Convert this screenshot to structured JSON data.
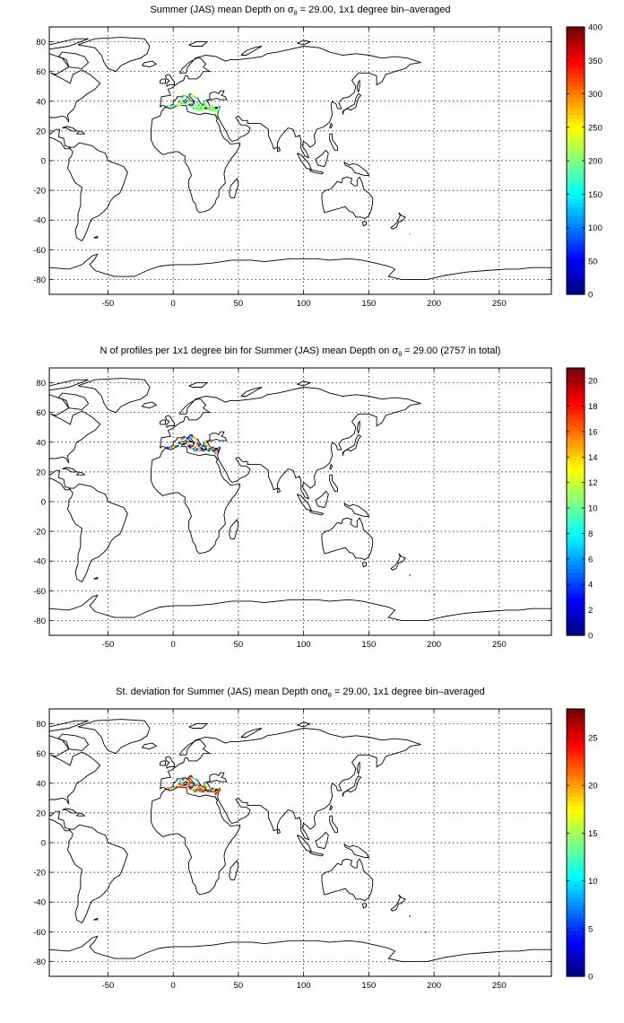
{
  "panels": [
    {
      "title_pre": "Summer (JAS) mean Depth on ",
      "title_sym": "σ",
      "title_sub": "θ",
      "title_post": " = 29.00, 1x1 degree bin–averaged",
      "colorbar": {
        "min": 0,
        "max": 400,
        "ticks": [
          "0",
          "50",
          "100",
          "150",
          "200",
          "250",
          "300",
          "350",
          "400"
        ]
      },
      "samples": [
        120,
        170,
        215,
        245,
        205,
        150,
        185,
        230,
        250,
        190
      ]
    },
    {
      "title_pre": "N of profiles per 1x1 degree bin for Summer (JAS) mean Depth on ",
      "title_sym": "σ",
      "title_sub": "θ",
      "title_post": " = 29.00 (2757 in total)",
      "colorbar": {
        "min": 0,
        "max": 21,
        "ticks": [
          "0",
          "2",
          "4",
          "6",
          "8",
          "10",
          "12",
          "14",
          "16",
          "18",
          "20"
        ]
      },
      "samples": [
        3,
        6,
        9,
        14,
        17,
        19,
        12,
        5,
        2,
        15
      ]
    },
    {
      "title_pre": "St. deviation for Summer (JAS) mean Depth on",
      "title_sym": "σ",
      "title_sub": "θ",
      "title_post": " = 29.00, 1x1 degree bin–averaged",
      "colorbar": {
        "min": 0,
        "max": 28,
        "ticks": [
          "0",
          "5",
          "10",
          "15",
          "20",
          "25"
        ]
      },
      "samples": [
        22,
        26,
        19,
        24,
        12,
        27,
        8,
        25,
        23,
        16
      ]
    }
  ],
  "axes": {
    "xlim": [
      -95,
      290
    ],
    "ylim": [
      -90,
      90
    ],
    "xticks": [
      "-50",
      "0",
      "50",
      "100",
      "150",
      "200",
      "250"
    ],
    "yticks": [
      "80",
      "60",
      "40",
      "20",
      "0",
      "-20",
      "-40",
      "-60",
      "-80"
    ],
    "grid": true,
    "projection": "equirectangular"
  },
  "colormap": "jet"
}
